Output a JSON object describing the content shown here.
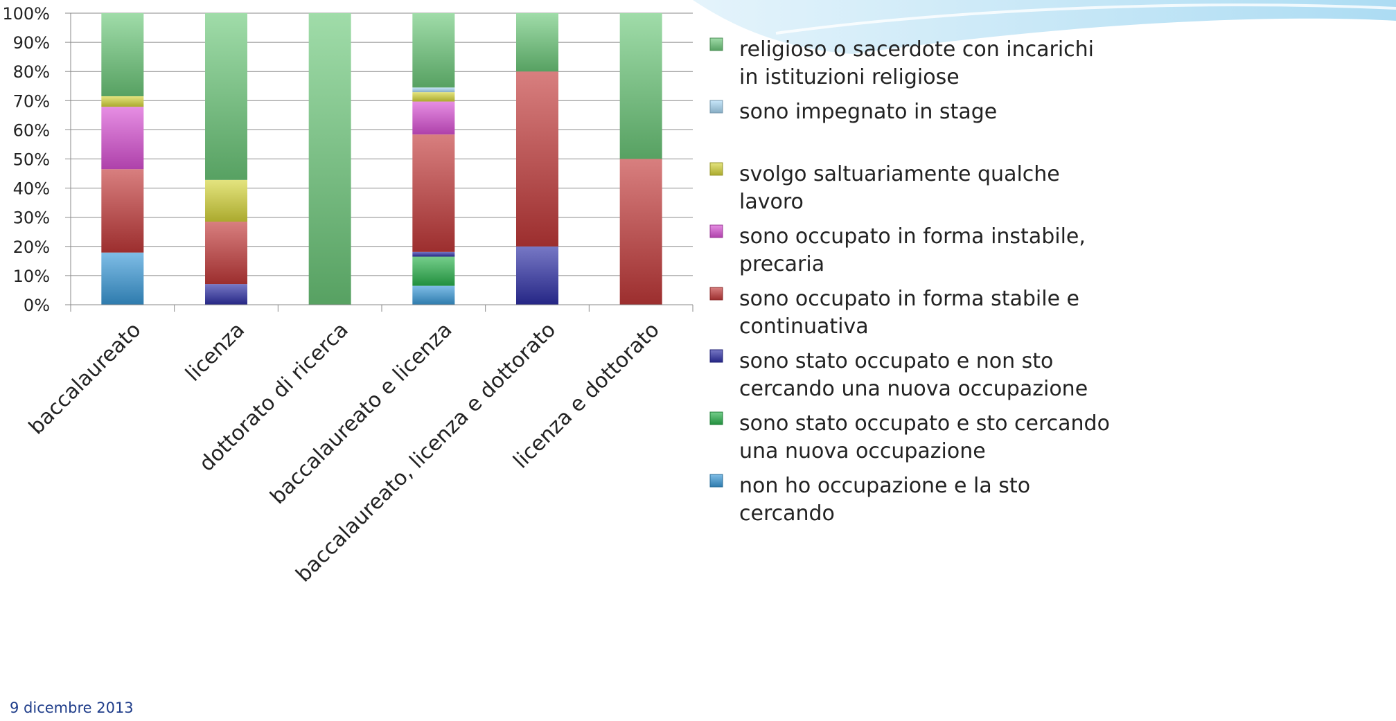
{
  "footer": {
    "date": "9 dicembre 2013"
  },
  "colors": {
    "religioso": "#6dc97a",
    "stage": "#a9d8f5",
    "saltuario": "#d6d53a",
    "instabile": "#d951d4",
    "stabile": "#c33a3a",
    "nonCerca": "#2e2fa6",
    "staCercando": "#2bb34d",
    "nonHo": "#3a9ad8"
  },
  "chart_data": {
    "type": "bar",
    "stacked": true,
    "categories": [
      "baccalaureato",
      "licenza",
      "dottorato di ricerca",
      "baccalaureato e licenza",
      "baccalaureato, licenza e dottorato",
      "licenza e dottorato"
    ],
    "ylim": [
      0,
      100
    ],
    "yticks": [
      "0%",
      "10%",
      "20%",
      "30%",
      "40%",
      "50%",
      "60%",
      "70%",
      "80%",
      "90%",
      "100%"
    ],
    "grid": true,
    "legend_position": "right",
    "series": [
      {
        "name": "non ho occupazione e la sto cercando",
        "key": "nonHo",
        "values": [
          17.9,
          0,
          0,
          6.5,
          0,
          0
        ]
      },
      {
        "name": "sono stato occupato e sto cercando una nuova occupazione",
        "key": "staCercando",
        "values": [
          0,
          0,
          0,
          10.0,
          0,
          0
        ]
      },
      {
        "name": "sono stato occupato e non sto cercando una nuova occupazione",
        "key": "nonCerca",
        "values": [
          0,
          7.1,
          0,
          1.6,
          20.0,
          0
        ]
      },
      {
        "name": "sono occupato in forma stabile e continuativa",
        "key": "stabile",
        "values": [
          28.6,
          21.4,
          0,
          40.3,
          60.0,
          50.0
        ]
      },
      {
        "name": "sono occupato in forma instabile, precaria",
        "key": "instabile",
        "values": [
          21.4,
          0,
          0,
          11.3,
          0,
          0
        ]
      },
      {
        "name": "svolgo saltuariamente qualche lavoro",
        "key": "saltuario",
        "values": [
          3.6,
          14.3,
          0,
          3.2,
          0,
          0
        ]
      },
      {
        "name": "sono impegnato in stage",
        "key": "stage",
        "values": [
          0,
          0,
          0,
          1.6,
          0,
          0
        ]
      },
      {
        "name": "religioso o sacerdote con incarichi in istituzioni religiose",
        "key": "religioso",
        "values": [
          28.5,
          57.2,
          100,
          25.5,
          20.0,
          50.0
        ]
      }
    ],
    "legend": [
      {
        "key": "religioso",
        "lines": [
          "religioso o sacerdote con incarichi",
          "in istituzioni religiose"
        ]
      },
      {
        "key": "stage",
        "lines": [
          "sono impegnato in stage"
        ]
      },
      {
        "key": "saltuario",
        "lines": [
          "svolgo saltuariamente qualche",
          "lavoro"
        ]
      },
      {
        "key": "instabile",
        "lines": [
          "sono occupato in forma instabile,",
          "precaria"
        ]
      },
      {
        "key": "stabile",
        "lines": [
          "sono occupato in forma stabile e",
          "continuativa"
        ]
      },
      {
        "key": "nonCerca",
        "lines": [
          "sono stato occupato e non sto",
          "cercando una nuova occupazione"
        ]
      },
      {
        "key": "staCercando",
        "lines": [
          "sono stato occupato e sto cercando",
          "una nuova occupazione"
        ]
      },
      {
        "key": "nonHo",
        "lines": [
          "non ho occupazione e la sto",
          "cercando"
        ]
      }
    ]
  }
}
